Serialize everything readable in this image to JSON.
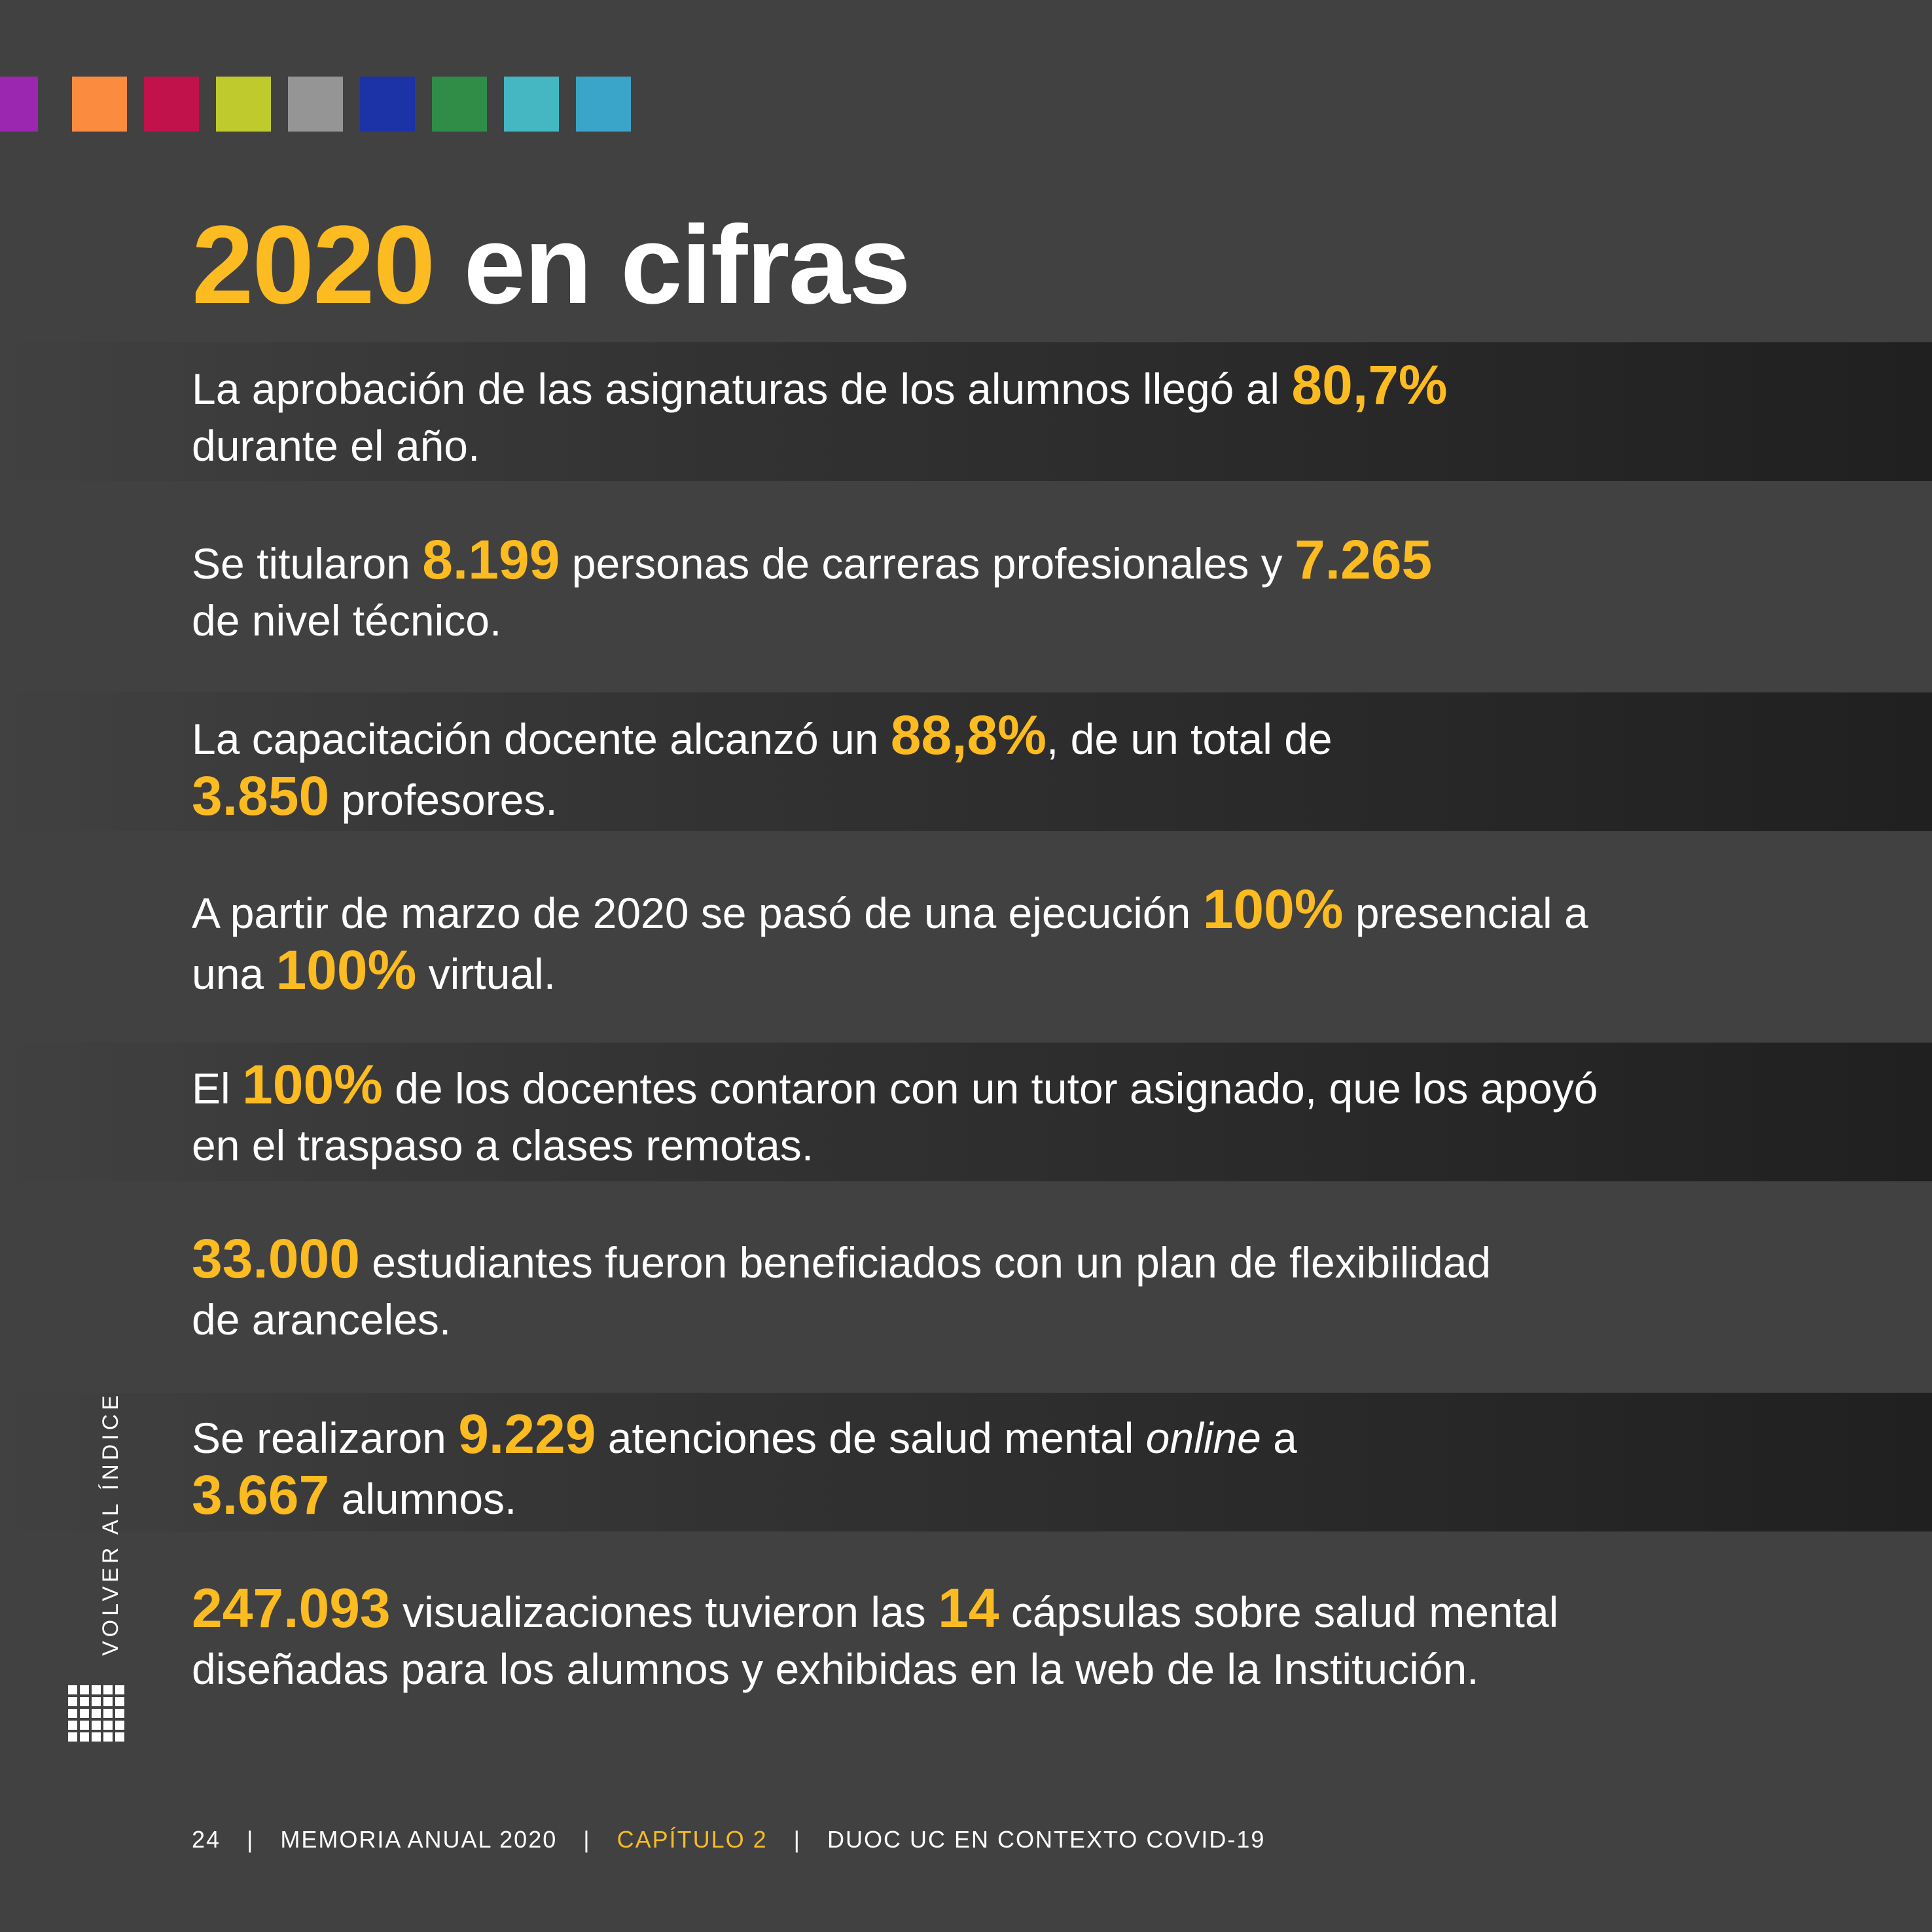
{
  "palette": {
    "swatches": [
      "#9b27b0",
      "#fb8c3f",
      "#c2124b",
      "#bfca2c",
      "#959595",
      "#1b33a6",
      "#2f8d48",
      "#44b7c2",
      "#3aa5c8"
    ],
    "accent": "#fbbb21",
    "background": "#414141"
  },
  "title": {
    "year": "2020",
    "rest": "en cifras"
  },
  "stats": [
    {
      "t1": "La aprobación de las asignaturas de los alumnos llegó al ",
      "n1": "80,7%",
      "t2": "durante el año."
    },
    {
      "t1": "Se titularon ",
      "n1": "8.199",
      "t2": " personas de carreras profesionales y ",
      "n2": "7.265",
      "t3": "de nivel técnico."
    },
    {
      "t1": "La capacitación docente alcanzó un ",
      "n1": "88,8%",
      "t2": ", de un total de",
      "n2": "3.850",
      "t3": " profesores."
    },
    {
      "t1": "A partir de marzo de 2020 se pasó de una ejecución ",
      "n1": "100%",
      "t2": " presencial a",
      "t3": "una ",
      "n2": "100%",
      "t4": " virtual."
    },
    {
      "t1": "El ",
      "n1": "100%",
      "t2": " de los docentes contaron con un tutor asignado, que los apoyó",
      "t3": "en el traspaso a clases remotas."
    },
    {
      "n1": "33.000",
      "t1": " estudiantes fueron beneficiados con un plan de flexibilidad",
      "t2": "de aranceles."
    },
    {
      "t1": "Se realizaron ",
      "n1": "9.229",
      "t2": " atenciones de salud mental ",
      "t2i": "online",
      "t2b": " a",
      "n2": "3.667",
      "t3": " alumnos."
    },
    {
      "n1": "247.093",
      "t1": " visualizaciones tuvieron las ",
      "n2": "14",
      "t2": " cápsulas sobre salud mental",
      "t3": "diseñadas para los alumnos y exhibidas en la web de la Institución."
    }
  ],
  "nav": {
    "volver": "VOLVER AL ÍNDICE",
    "icon": "grid-index-icon"
  },
  "footer": {
    "page": "24",
    "separator": "|",
    "doc": "MEMORIA ANUAL 2020",
    "chapter": "CAPÍTULO 2",
    "section": "DUOC UC EN CONTEXTO COVID-19"
  }
}
